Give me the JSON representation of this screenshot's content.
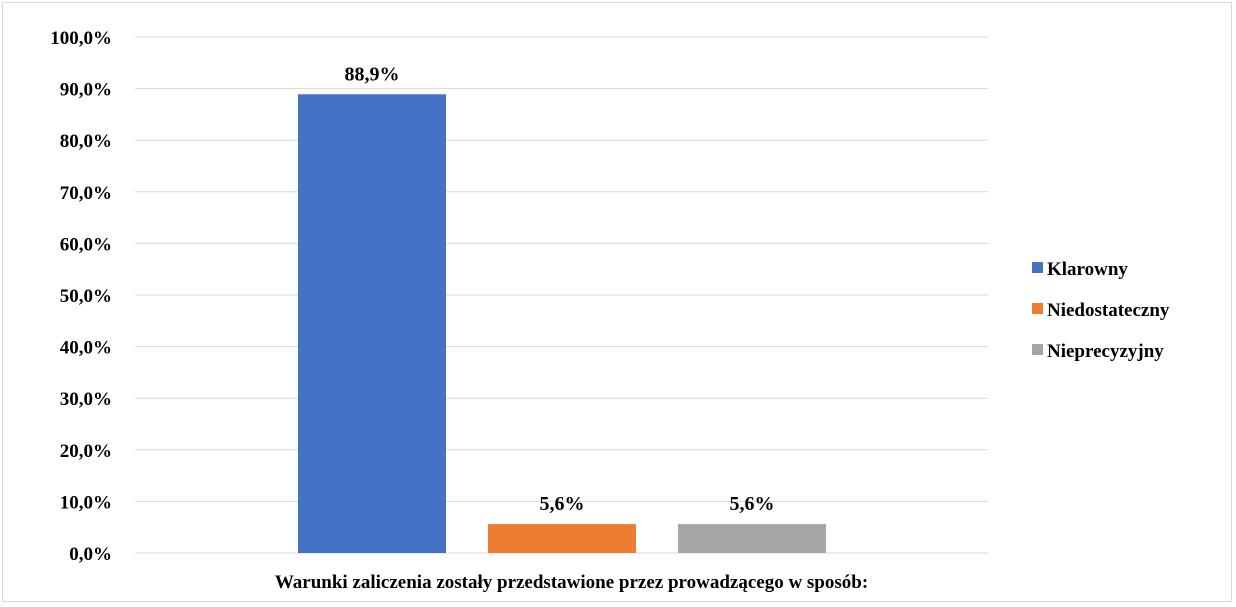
{
  "chart_data": {
    "type": "bar",
    "xlabel": "Warunki zaliczenia zostały przedstawione przez prowadzącego w sposób:",
    "ylabel": "",
    "ylim": [
      0,
      100
    ],
    "y_ticks": [
      "0,0%",
      "10,0%",
      "20,0%",
      "30,0%",
      "40,0%",
      "50,0%",
      "60,0%",
      "70,0%",
      "80,0%",
      "90,0%",
      "100,0%"
    ],
    "grid": true,
    "legend_position": "right",
    "series": [
      {
        "name": "Klarowny",
        "value": 88.9,
        "label": "88,9%",
        "color": "#4472c4"
      },
      {
        "name": "Niedostateczny",
        "value": 5.6,
        "label": "5,6%",
        "color": "#ed7d31"
      },
      {
        "name": "Nieprecyzyjny",
        "value": 5.6,
        "label": "5,6%",
        "color": "#a5a5a5"
      }
    ]
  }
}
